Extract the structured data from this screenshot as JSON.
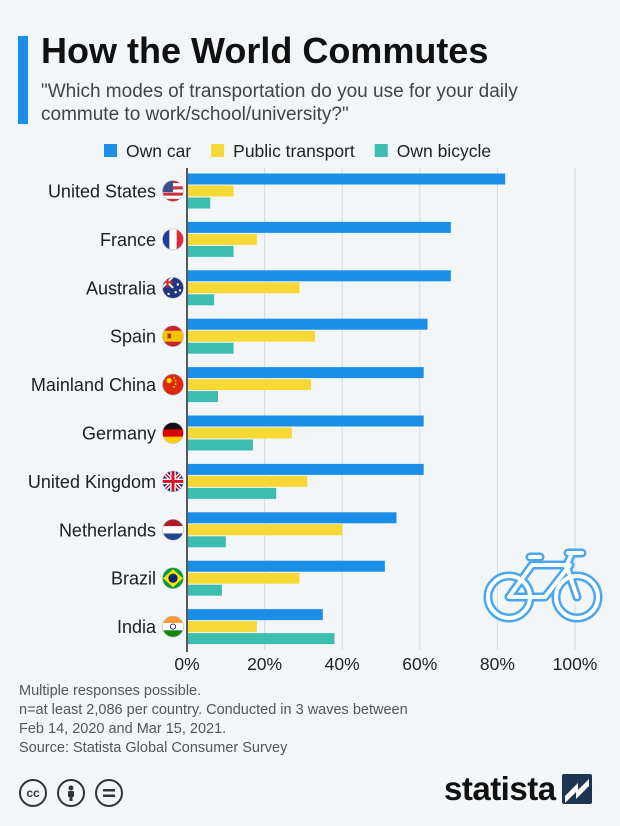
{
  "header": {
    "title": "How the World Commutes",
    "subtitle": "\"Which modes of transportation do you use for your daily commute to work/school/university?\""
  },
  "legend": {
    "items": [
      {
        "label": "Own car",
        "color": "#1b8ee8"
      },
      {
        "label": "Public transport",
        "color": "#f7d935"
      },
      {
        "label": "Own bicycle",
        "color": "#3dbdb0"
      }
    ]
  },
  "chart_data": {
    "type": "bar",
    "orientation": "horizontal",
    "categories": [
      "United States",
      "France",
      "Australia",
      "Spain",
      "Mainland China",
      "Germany",
      "United Kingdom",
      "Netherlands",
      "Brazil",
      "India"
    ],
    "series": [
      {
        "name": "Own car",
        "color": "#1b8ee8",
        "values": [
          82,
          68,
          68,
          62,
          61,
          61,
          61,
          54,
          51,
          35
        ]
      },
      {
        "name": "Public transport",
        "color": "#f7d935",
        "values": [
          12,
          18,
          29,
          33,
          32,
          27,
          31,
          40,
          29,
          18
        ]
      },
      {
        "name": "Own bicycle",
        "color": "#3dbdb0",
        "values": [
          6,
          12,
          7,
          12,
          8,
          17,
          23,
          10,
          9,
          38
        ]
      }
    ],
    "xlim": [
      0,
      100
    ],
    "xticks": [
      0,
      20,
      40,
      60,
      80,
      100
    ],
    "tick_labels": [
      "0%",
      "20%",
      "40%",
      "60%",
      "80%",
      "100%"
    ],
    "grid": true,
    "legend_position": "top"
  },
  "flags": [
    "us-flag-icon",
    "france-flag-icon",
    "australia-flag-icon",
    "spain-flag-icon",
    "china-flag-icon",
    "germany-flag-icon",
    "uk-flag-icon",
    "netherlands-flag-icon",
    "brazil-flag-icon",
    "india-flag-icon"
  ],
  "decoration": {
    "illustration": "bicycle-icon"
  },
  "footer": {
    "notes": [
      "Multiple responses possible.",
      "n=at least 2,086 per country. Conducted in 3 waves between",
      "Feb 14, 2020 and Mar 15, 2021."
    ],
    "source": "Source: Statista Global Consumer Survey",
    "license_icons": [
      "cc-icon",
      "attribution-icon",
      "no-derivatives-icon"
    ],
    "brand": "statista"
  }
}
